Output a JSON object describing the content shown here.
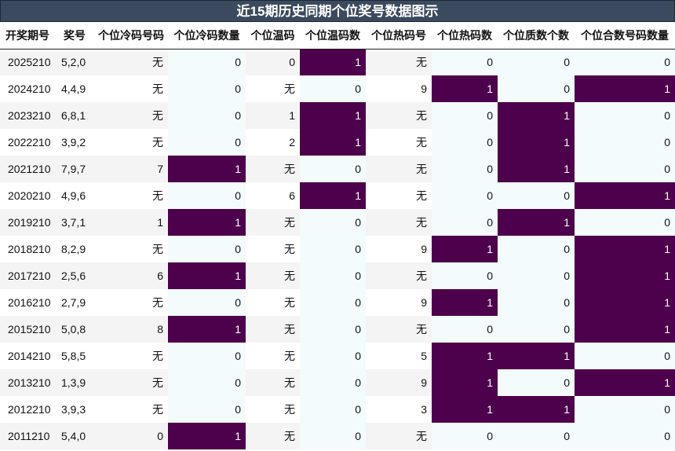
{
  "title": "近15期历史同期个位奖号数据图示",
  "columns": [
    "开奖期号",
    "奖号",
    "个位冷码号码",
    "个位冷码数量",
    "个位温码",
    "个位温码数",
    "个位热码号",
    "个位热码数",
    "个位质数个数",
    "个位合数号码数量"
  ],
  "highlight_color": "#4d004b",
  "rows": [
    {
      "period": "2025210",
      "numbers": "5,2,0",
      "cold_num": "无",
      "cold_cnt": 0,
      "warm_num": "0",
      "warm_cnt": 1,
      "hot_num": "无",
      "hot_cnt": 0,
      "prime_cnt": 0,
      "composite_cnt": 0
    },
    {
      "period": "2024210",
      "numbers": "4,4,9",
      "cold_num": "无",
      "cold_cnt": 0,
      "warm_num": "无",
      "warm_cnt": 0,
      "hot_num": "9",
      "hot_cnt": 1,
      "prime_cnt": 0,
      "composite_cnt": 1
    },
    {
      "period": "2023210",
      "numbers": "6,8,1",
      "cold_num": "无",
      "cold_cnt": 0,
      "warm_num": "1",
      "warm_cnt": 1,
      "hot_num": "无",
      "hot_cnt": 0,
      "prime_cnt": 1,
      "composite_cnt": 0
    },
    {
      "period": "2022210",
      "numbers": "3,9,2",
      "cold_num": "无",
      "cold_cnt": 0,
      "warm_num": "2",
      "warm_cnt": 1,
      "hot_num": "无",
      "hot_cnt": 0,
      "prime_cnt": 1,
      "composite_cnt": 0
    },
    {
      "period": "2021210",
      "numbers": "7,9,7",
      "cold_num": "7",
      "cold_cnt": 1,
      "warm_num": "无",
      "warm_cnt": 0,
      "hot_num": "无",
      "hot_cnt": 0,
      "prime_cnt": 1,
      "composite_cnt": 0
    },
    {
      "period": "2020210",
      "numbers": "4,9,6",
      "cold_num": "无",
      "cold_cnt": 0,
      "warm_num": "6",
      "warm_cnt": 1,
      "hot_num": "无",
      "hot_cnt": 0,
      "prime_cnt": 0,
      "composite_cnt": 1
    },
    {
      "period": "2019210",
      "numbers": "3,7,1",
      "cold_num": "1",
      "cold_cnt": 1,
      "warm_num": "无",
      "warm_cnt": 0,
      "hot_num": "无",
      "hot_cnt": 0,
      "prime_cnt": 1,
      "composite_cnt": 0
    },
    {
      "period": "2018210",
      "numbers": "8,2,9",
      "cold_num": "无",
      "cold_cnt": 0,
      "warm_num": "无",
      "warm_cnt": 0,
      "hot_num": "9",
      "hot_cnt": 1,
      "prime_cnt": 0,
      "composite_cnt": 1
    },
    {
      "period": "2017210",
      "numbers": "2,5,6",
      "cold_num": "6",
      "cold_cnt": 1,
      "warm_num": "无",
      "warm_cnt": 0,
      "hot_num": "无",
      "hot_cnt": 0,
      "prime_cnt": 0,
      "composite_cnt": 1
    },
    {
      "period": "2016210",
      "numbers": "2,7,9",
      "cold_num": "无",
      "cold_cnt": 0,
      "warm_num": "无",
      "warm_cnt": 0,
      "hot_num": "9",
      "hot_cnt": 1,
      "prime_cnt": 0,
      "composite_cnt": 1
    },
    {
      "period": "2015210",
      "numbers": "5,0,8",
      "cold_num": "8",
      "cold_cnt": 1,
      "warm_num": "无",
      "warm_cnt": 0,
      "hot_num": "无",
      "hot_cnt": 0,
      "prime_cnt": 0,
      "composite_cnt": 1
    },
    {
      "period": "2014210",
      "numbers": "5,8,5",
      "cold_num": "无",
      "cold_cnt": 0,
      "warm_num": "无",
      "warm_cnt": 0,
      "hot_num": "5",
      "hot_cnt": 1,
      "prime_cnt": 1,
      "composite_cnt": 0
    },
    {
      "period": "2013210",
      "numbers": "1,3,9",
      "cold_num": "无",
      "cold_cnt": 0,
      "warm_num": "无",
      "warm_cnt": 0,
      "hot_num": "9",
      "hot_cnt": 1,
      "prime_cnt": 0,
      "composite_cnt": 1
    },
    {
      "period": "2012210",
      "numbers": "3,9,3",
      "cold_num": "无",
      "cold_cnt": 0,
      "warm_num": "无",
      "warm_cnt": 0,
      "hot_num": "3",
      "hot_cnt": 1,
      "prime_cnt": 1,
      "composite_cnt": 0
    },
    {
      "period": "2011210",
      "numbers": "5,4,0",
      "cold_num": "0",
      "cold_cnt": 1,
      "warm_num": "无",
      "warm_cnt": 0,
      "hot_num": "无",
      "hot_cnt": 0,
      "prime_cnt": 0,
      "composite_cnt": 0
    }
  ]
}
